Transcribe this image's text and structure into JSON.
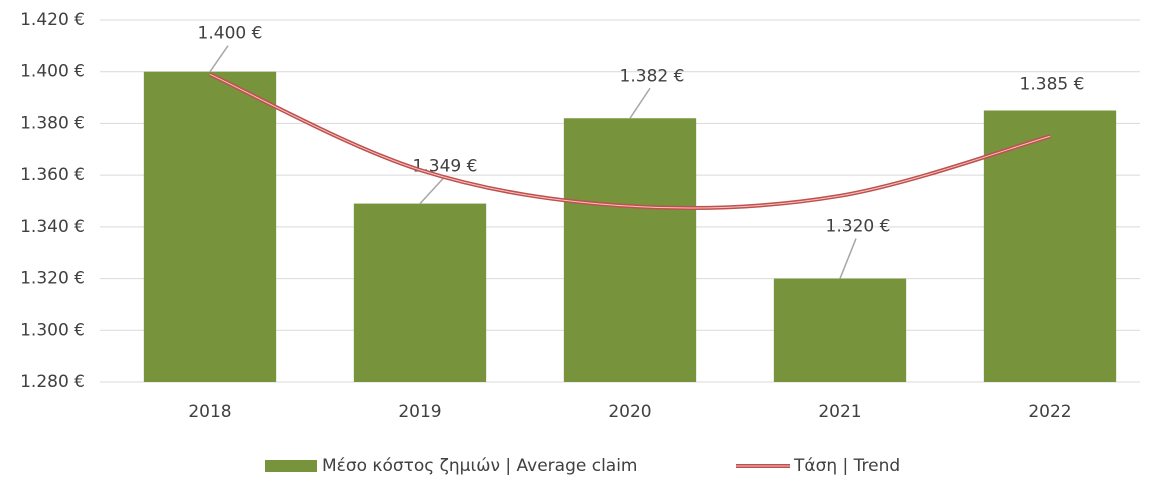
{
  "chart_data": {
    "type": "bar",
    "categories": [
      "2018",
      "2019",
      "2020",
      "2021",
      "2022"
    ],
    "series": [
      {
        "name": "Μέσο κόστος ζημιών | Average claim",
        "type": "bar",
        "color": "#77933c",
        "values": [
          1400,
          1349,
          1382,
          1320,
          1385
        ],
        "value_labels": [
          "1.400 €",
          "1.349 €",
          "1.382 €",
          "1.320 €",
          "1.385 €"
        ]
      },
      {
        "name": "Τάση | Trend",
        "type": "line",
        "color": "#c0504d",
        "values": [
          1399,
          1362,
          1348,
          1352,
          1375
        ]
      }
    ],
    "ylim": [
      1280,
      1420
    ],
    "yticks": [
      {
        "value": 1280,
        "label": "1.280 €"
      },
      {
        "value": 1300,
        "label": "1.300 €"
      },
      {
        "value": 1320,
        "label": "1.320 €"
      },
      {
        "value": 1340,
        "label": "1.340 €"
      },
      {
        "value": 1360,
        "label": "1.360 €"
      },
      {
        "value": 1380,
        "label": "1.380 €"
      },
      {
        "value": 1400,
        "label": "1.400 €"
      },
      {
        "value": 1420,
        "label": "1.420 €"
      }
    ],
    "grid": true,
    "legend": "bottom"
  }
}
